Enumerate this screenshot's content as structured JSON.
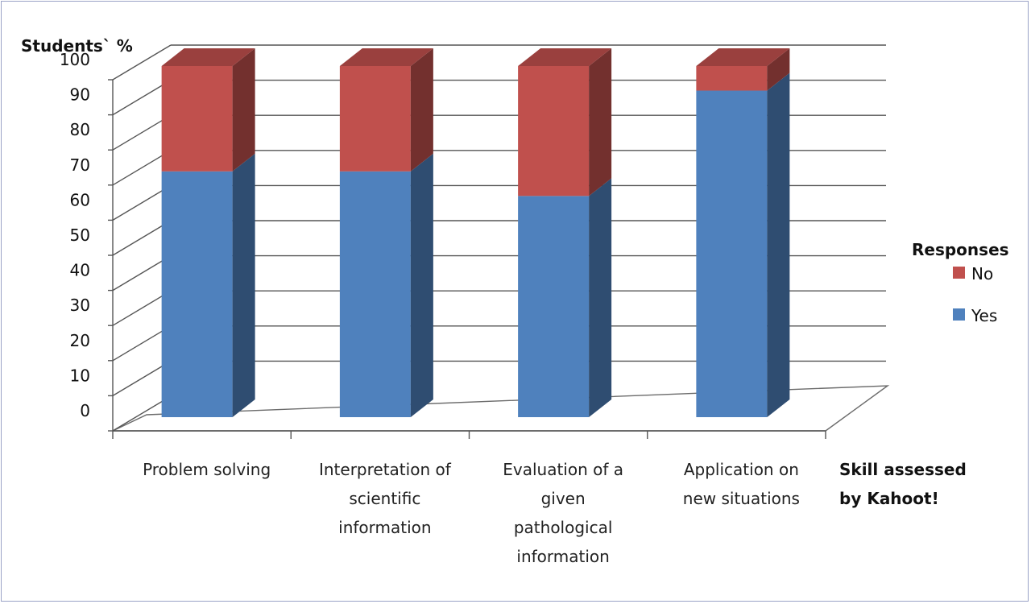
{
  "chart_data": {
    "type": "bar",
    "stacked": true,
    "three_d": true,
    "ylabel": "Students` %",
    "xlabel_lines": [
      "Skill assessed",
      "by Kahoot!"
    ],
    "ylim": [
      0,
      100
    ],
    "yticks": [
      0,
      10,
      20,
      30,
      40,
      50,
      60,
      70,
      80,
      90,
      100
    ],
    "grid": true,
    "legend": {
      "title": "Responses",
      "position": "right"
    },
    "categories": [
      [
        "Problem solving"
      ],
      [
        "Interpretation of",
        "scientific",
        "information"
      ],
      [
        "Evaluation of a",
        "given",
        "pathological",
        "information"
      ],
      [
        "Application on",
        "new situations"
      ]
    ],
    "series": [
      {
        "name": "Yes",
        "color": "#4f81bd",
        "values": [
          70,
          70,
          63,
          93
        ]
      },
      {
        "name": "No",
        "color": "#c0504d",
        "values": [
          30,
          30,
          37,
          7
        ]
      }
    ],
    "legend_order": [
      "No",
      "Yes"
    ]
  }
}
